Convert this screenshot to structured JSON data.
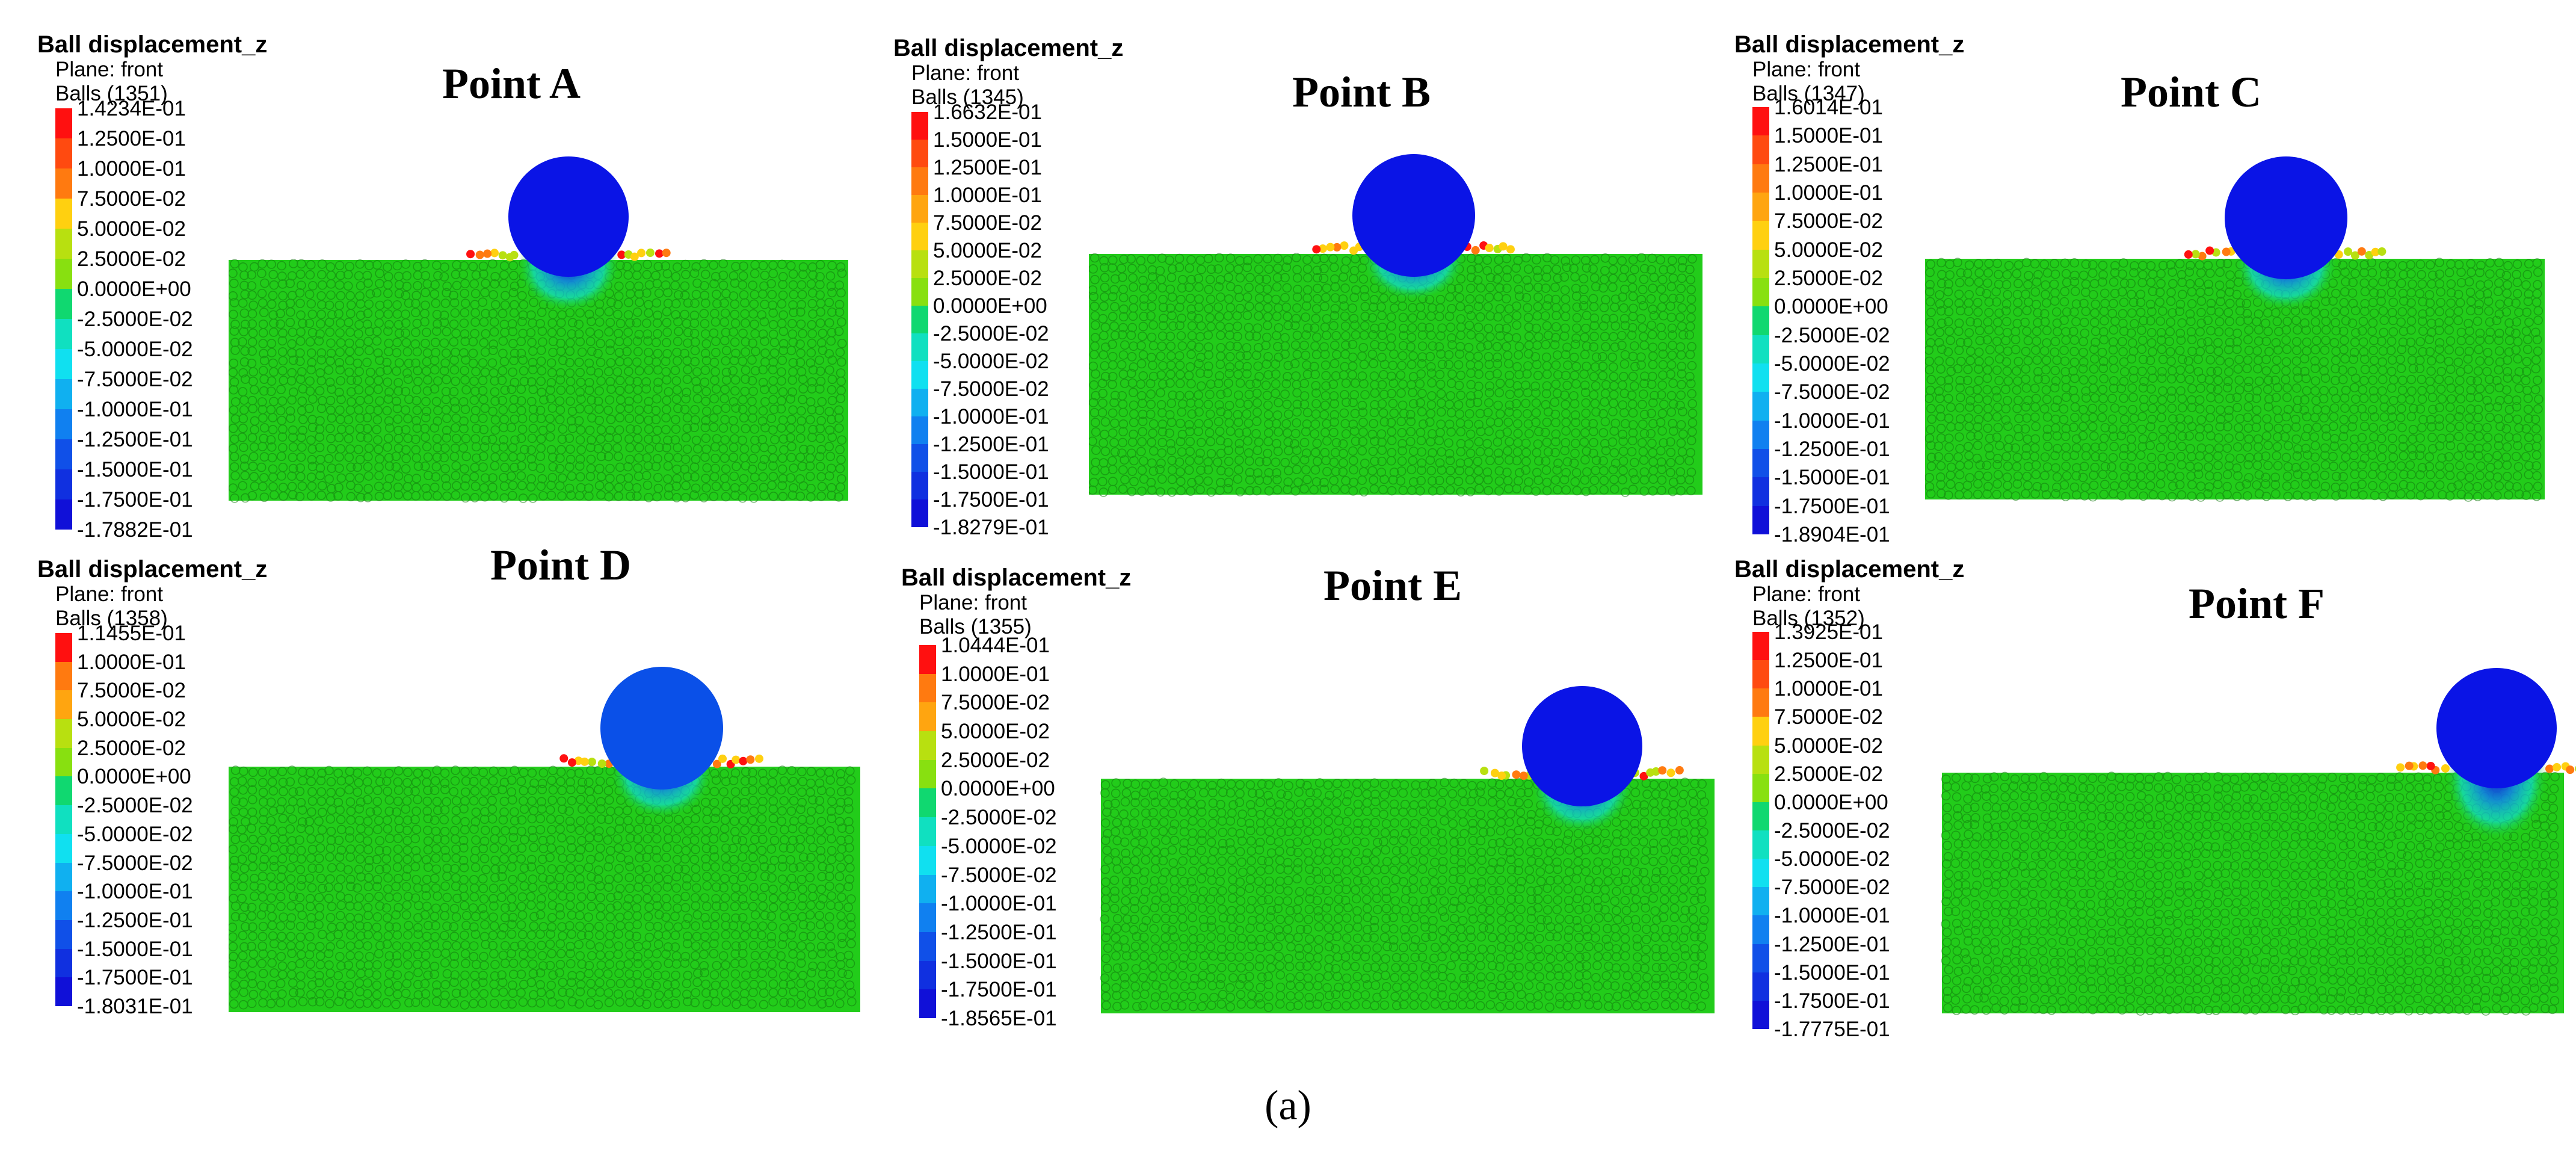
{
  "legend_title": "Ball displacement_z",
  "plane_label": "Plane: front",
  "panels": [
    {
      "id": "A",
      "title": "Point A",
      "balls": "Balls (1351)",
      "ticks": [
        "1.4234E-01",
        "1.2500E-01",
        "1.0000E-01",
        "7.5000E-02",
        "5.0000E-02",
        "2.5000E-02",
        "0.0000E+00",
        "-2.5000E-02",
        "-5.0000E-02",
        "-7.5000E-02",
        "-1.0000E-01",
        "-1.2500E-01",
        "-1.5000E-01",
        "-1.7500E-01",
        "-1.7882E-01"
      ]
    },
    {
      "id": "B",
      "title": "Point B",
      "balls": "Balls (1345)",
      "ticks": [
        "1.6632E-01",
        "1.5000E-01",
        "1.2500E-01",
        "1.0000E-01",
        "7.5000E-02",
        "5.0000E-02",
        "2.5000E-02",
        "0.0000E+00",
        "-2.5000E-02",
        "-5.0000E-02",
        "-7.5000E-02",
        "-1.0000E-01",
        "-1.2500E-01",
        "-1.5000E-01",
        "-1.7500E-01",
        "-1.8279E-01"
      ]
    },
    {
      "id": "C",
      "title": "Point C",
      "balls": "Balls (1347)",
      "ticks": [
        "1.6014E-01",
        "1.5000E-01",
        "1.2500E-01",
        "1.0000E-01",
        "7.5000E-02",
        "5.0000E-02",
        "2.5000E-02",
        "0.0000E+00",
        "-2.5000E-02",
        "-5.0000E-02",
        "-7.5000E-02",
        "-1.0000E-01",
        "-1.2500E-01",
        "-1.5000E-01",
        "-1.7500E-01",
        "-1.8904E-01"
      ]
    },
    {
      "id": "D",
      "title": "Point D",
      "balls": "Balls (1358)",
      "ticks": [
        "1.1455E-01",
        "1.0000E-01",
        "7.5000E-02",
        "5.0000E-02",
        "2.5000E-02",
        "0.0000E+00",
        "-2.5000E-02",
        "-5.0000E-02",
        "-7.5000E-02",
        "-1.0000E-01",
        "-1.2500E-01",
        "-1.5000E-01",
        "-1.7500E-01",
        "-1.8031E-01"
      ]
    },
    {
      "id": "E",
      "title": "Point E",
      "balls": "Balls (1355)",
      "ticks": [
        "1.0444E-01",
        "1.0000E-01",
        "7.5000E-02",
        "5.0000E-02",
        "2.5000E-02",
        "0.0000E+00",
        "-2.5000E-02",
        "-5.0000E-02",
        "-7.5000E-02",
        "-1.0000E-01",
        "-1.2500E-01",
        "-1.5000E-01",
        "-1.7500E-01",
        "-1.8565E-01"
      ]
    },
    {
      "id": "F",
      "title": "Point F",
      "balls": "Balls (1352)",
      "ticks": [
        "1.3925E-01",
        "1.2500E-01",
        "1.0000E-01",
        "7.5000E-02",
        "5.0000E-02",
        "2.5000E-02",
        "0.0000E+00",
        "-2.5000E-02",
        "-5.0000E-02",
        "-7.5000E-02",
        "-1.0000E-01",
        "-1.2500E-01",
        "-1.5000E-01",
        "-1.7500E-01",
        "-1.7775E-01"
      ]
    }
  ],
  "caption": "(a)",
  "colors": {
    "particles": "#22cc1a",
    "indenter_dark": "#0a14e6",
    "indenter_light": "#0a50e8",
    "colorbar_positive": [
      "#ff1010",
      "#ff4a10",
      "#ff7a10",
      "#ffa510",
      "#ffd010",
      "#b8e010",
      "#88e010"
    ],
    "colorbar_zero": "#22cc1a",
    "colorbar_negative": [
      "#10d870",
      "#10e0c0",
      "#10e0f0",
      "#10b0f0",
      "#1080f0",
      "#1050e8",
      "#1030e0",
      "#1010d8"
    ]
  }
}
